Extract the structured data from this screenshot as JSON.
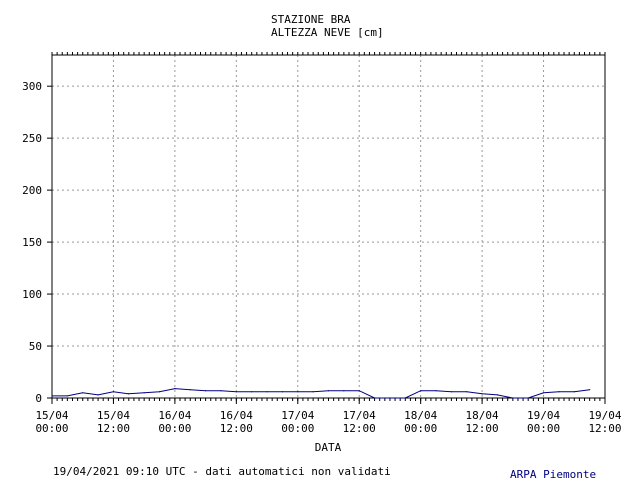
{
  "chart_data": {
    "type": "line",
    "title": "STAZIONE BRA",
    "subtitle": "ALTEZZA NEVE [cm]",
    "xlabel": "DATA",
    "ylabel": "",
    "ylim": [
      0,
      330
    ],
    "yticks": [
      0,
      50,
      100,
      150,
      200,
      250,
      300
    ],
    "xlim": [
      "2021-04-15 00:00",
      "2021-04-19 12:00"
    ],
    "xticks": [
      {
        "date": "15/04",
        "time": "00:00"
      },
      {
        "date": "15/04",
        "time": "12:00"
      },
      {
        "date": "16/04",
        "time": "00:00"
      },
      {
        "date": "16/04",
        "time": "12:00"
      },
      {
        "date": "17/04",
        "time": "00:00"
      },
      {
        "date": "17/04",
        "time": "12:00"
      },
      {
        "date": "18/04",
        "time": "00:00"
      },
      {
        "date": "18/04",
        "time": "12:00"
      },
      {
        "date": "19/04",
        "time": "00:00"
      },
      {
        "date": "19/04",
        "time": "12:00"
      }
    ],
    "grid": true,
    "series_color": "#000080",
    "x": [
      "2021-04-15 00:00",
      "2021-04-15 03:00",
      "2021-04-15 06:00",
      "2021-04-15 09:00",
      "2021-04-15 12:00",
      "2021-04-15 15:00",
      "2021-04-15 18:00",
      "2021-04-15 21:00",
      "2021-04-16 00:00",
      "2021-04-16 03:00",
      "2021-04-16 06:00",
      "2021-04-16 09:00",
      "2021-04-16 12:00",
      "2021-04-16 15:00",
      "2021-04-16 18:00",
      "2021-04-16 21:00",
      "2021-04-17 00:00",
      "2021-04-17 03:00",
      "2021-04-17 06:00",
      "2021-04-17 09:00",
      "2021-04-17 12:00",
      "2021-04-17 15:00",
      "2021-04-17 18:00",
      "2021-04-17 21:00",
      "2021-04-18 00:00",
      "2021-04-18 03:00",
      "2021-04-18 06:00",
      "2021-04-18 09:00",
      "2021-04-18 12:00",
      "2021-04-18 15:00",
      "2021-04-18 18:00",
      "2021-04-18 21:00",
      "2021-04-19 00:00",
      "2021-04-19 03:00",
      "2021-04-19 06:00",
      "2021-04-19 09:00"
    ],
    "y": [
      2,
      2,
      5,
      3,
      6,
      4,
      5,
      6,
      9,
      8,
      7,
      7,
      6,
      6,
      6,
      6,
      6,
      6,
      7,
      7,
      7,
      0,
      0,
      0,
      7,
      7,
      6,
      6,
      4,
      3,
      0,
      0,
      5,
      6,
      6,
      8
    ]
  },
  "footer": {
    "timestamp_note": "19/04/2021 09:10 UTC - dati automatici non validati",
    "brand": "ARPA Piemonte",
    "brand_color": "#000080"
  }
}
